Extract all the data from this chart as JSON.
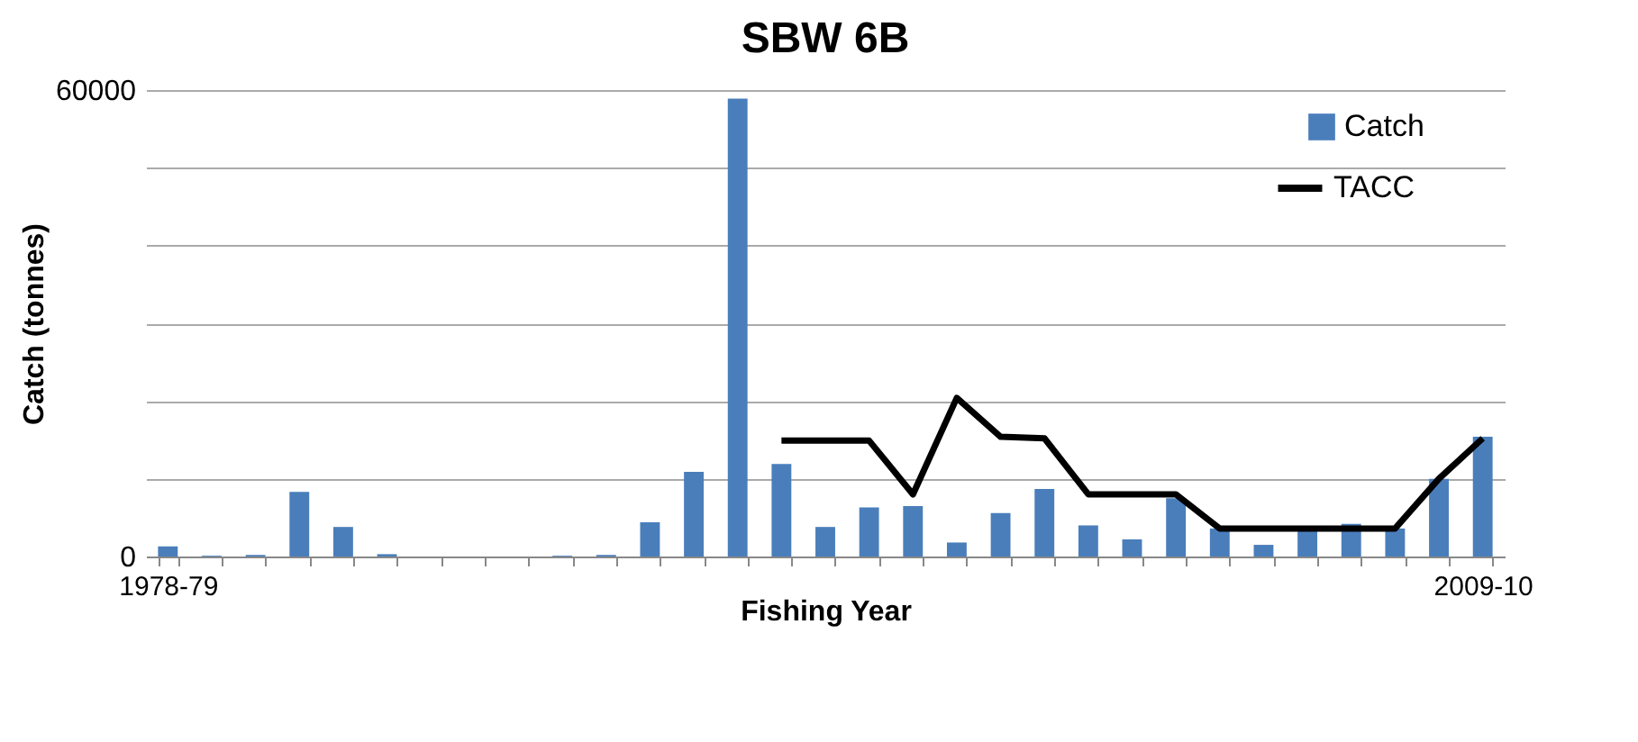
{
  "chart_data": {
    "type": "bar",
    "title": "SBW 6B",
    "xlabel": "Fishing Year",
    "ylabel": "Catch (tonnes)",
    "categories": [
      "1978-79",
      null,
      null,
      null,
      null,
      null,
      null,
      null,
      null,
      null,
      null,
      null,
      null,
      null,
      null,
      null,
      null,
      null,
      null,
      null,
      null,
      null,
      null,
      null,
      null,
      null,
      null,
      null,
      null,
      null,
      "2009-10"
    ],
    "series": [
      {
        "name": "Catch",
        "color": "#4a7ebb",
        "values": [
          1300,
          100,
          200,
          8300,
          3800,
          300,
          0,
          0,
          0,
          100,
          200,
          4400,
          10900,
          58900,
          11900,
          3800,
          6300,
          6500,
          1800,
          5600,
          8700,
          4000,
          2200,
          7500,
          3600,
          1500,
          3600,
          4200,
          3600,
          10000,
          15400
        ]
      },
      {
        "name": "TACC",
        "type": "line",
        "color": "#000000",
        "values": [
          null,
          null,
          null,
          null,
          null,
          null,
          null,
          null,
          null,
          null,
          null,
          null,
          null,
          null,
          14900,
          14900,
          14900,
          8000,
          20400,
          15400,
          15200,
          8000,
          8000,
          8000,
          3600,
          3600,
          3600,
          3600,
          3600,
          10000,
          15200
        ]
      }
    ],
    "ylim": [
      0,
      60000
    ],
    "yticks": [
      0,
      {
        "value": 10000,
        "label": null
      },
      {
        "value": 20000,
        "label": null
      },
      {
        "value": 30000,
        "label": null
      },
      {
        "value": 40000,
        "label": null
      },
      {
        "value": 50000,
        "label": null
      },
      60000
    ],
    "grid": "y",
    "legend": "top right"
  }
}
